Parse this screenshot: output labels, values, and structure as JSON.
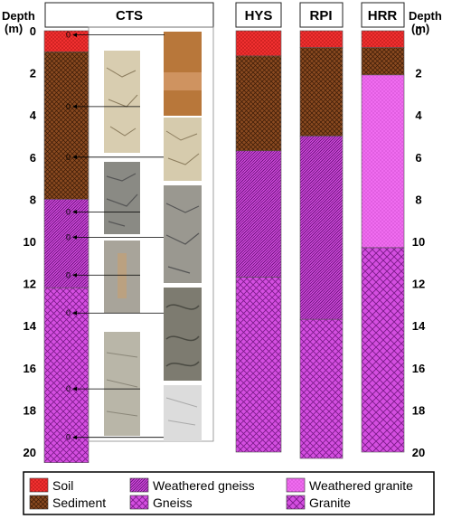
{
  "depth_axis": {
    "title": "Depth",
    "unit": "(m)",
    "min": 0,
    "max": 20,
    "ticks": [
      "0",
      "2",
      "4",
      "6",
      "8",
      "10",
      "12",
      "14",
      "16",
      "18",
      "20"
    ]
  },
  "colors": {
    "soil": "#f03030",
    "sediment": "#8a4a20",
    "weathered_gneiss": "#d44ee0",
    "gneiss": "#d44ee0",
    "weathered_granite": "#f06cf0",
    "granite": "#d44ee0"
  },
  "legend": [
    {
      "key": "soil",
      "label": "Soil"
    },
    {
      "key": "weathered_gneiss",
      "label": "Weathered gneiss"
    },
    {
      "key": "weathered_granite",
      "label": "Weathered granite"
    },
    {
      "key": "sediment",
      "label": "Sediment"
    },
    {
      "key": "gneiss",
      "label": "Gneiss"
    },
    {
      "key": "granite",
      "label": "Granite"
    }
  ],
  "columns": [
    {
      "name": "CTS",
      "layers": [
        {
          "key": "soil",
          "top": 0,
          "bottom": 1
        },
        {
          "key": "sediment",
          "top": 1,
          "bottom": 8
        },
        {
          "key": "weathered_gneiss",
          "top": 8,
          "bottom": 12.2
        },
        {
          "key": "gneiss",
          "top": 12.2,
          "bottom": 20.5
        }
      ]
    },
    {
      "name": "HYS",
      "layers": [
        {
          "key": "soil",
          "top": 0,
          "bottom": 1.2
        },
        {
          "key": "sediment",
          "top": 1.2,
          "bottom": 5.7
        },
        {
          "key": "weathered_gneiss",
          "top": 5.7,
          "bottom": 11.7
        },
        {
          "key": "gneiss",
          "top": 11.7,
          "bottom": 20
        }
      ]
    },
    {
      "name": "RPI",
      "layers": [
        {
          "key": "soil",
          "top": 0,
          "bottom": 0.8
        },
        {
          "key": "sediment",
          "top": 0.8,
          "bottom": 5
        },
        {
          "key": "weathered_gneiss",
          "top": 5,
          "bottom": 13.7
        },
        {
          "key": "gneiss",
          "top": 13.7,
          "bottom": 20.3
        }
      ]
    },
    {
      "name": "HRR",
      "layers": [
        {
          "key": "soil",
          "top": 0,
          "bottom": 0.8
        },
        {
          "key": "sediment",
          "top": 0.8,
          "bottom": 2.1
        },
        {
          "key": "weathered_granite",
          "top": 2.1,
          "bottom": 10.3
        },
        {
          "key": "granite",
          "top": 10.3,
          "bottom": 20
        }
      ]
    }
  ],
  "core_markers": [
    {
      "label": "0",
      "depth": 0.2
    },
    {
      "label": "0",
      "depth": 3.6
    },
    {
      "label": "0",
      "depth": 6
    },
    {
      "label": "0",
      "depth": 8.6
    },
    {
      "label": "0",
      "depth": 9.8
    },
    {
      "label": "0",
      "depth": 11.6
    },
    {
      "label": "0",
      "depth": 13.4
    },
    {
      "label": "0",
      "depth": 17
    },
    {
      "label": "0",
      "depth": 19.3
    }
  ],
  "core_photos": [
    {
      "name": "orange-soil-photo",
      "tone": "#b8773a"
    },
    {
      "name": "cracked-sediment-photo",
      "tone": "#d8cdb0"
    },
    {
      "name": "cracked-sediment-photo-2",
      "tone": "#d6cbad"
    },
    {
      "name": "gneiss-rubble-photo",
      "tone": "#8a8a84"
    },
    {
      "name": "gneiss-rubble-photo-2",
      "tone": "#9a9890"
    },
    {
      "name": "gneiss-core-photo",
      "tone": "#a8a49a"
    },
    {
      "name": "weathered-gneiss-photo",
      "tone": "#7d7b70"
    },
    {
      "name": "gneiss-core-photo-2",
      "tone": "#b9b6a8"
    },
    {
      "name": "pale-gneiss-photo",
      "tone": "#dcdcdc"
    }
  ]
}
